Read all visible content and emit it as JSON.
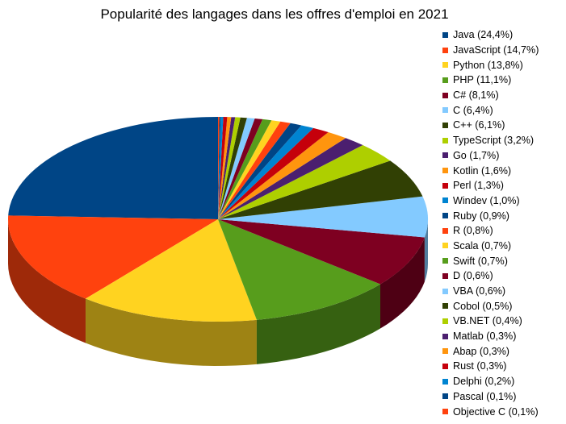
{
  "chart_data": {
    "type": "pie",
    "title": "Popularité des langages dans les offres d'emploi en 2021",
    "legend_position": "right",
    "slices": [
      {
        "label": "Java (24,4%)",
        "name": "Java",
        "value": 24.4,
        "color": "#004586"
      },
      {
        "label": "JavaScript (14,7%)",
        "name": "JavaScript",
        "value": 14.7,
        "color": "#ff420e"
      },
      {
        "label": "Python (13,8%)",
        "name": "Python",
        "value": 13.8,
        "color": "#ffd320"
      },
      {
        "label": "PHP (11,1%)",
        "name": "PHP",
        "value": 11.1,
        "color": "#579d1c"
      },
      {
        "label": "C# (8,1%)",
        "name": "C#",
        "value": 8.1,
        "color": "#7e0021"
      },
      {
        "label": "C (6,4%)",
        "name": "C",
        "value": 6.4,
        "color": "#83caff"
      },
      {
        "label": "C++ (6,1%)",
        "name": "C++",
        "value": 6.1,
        "color": "#314004"
      },
      {
        "label": "TypeScript (3,2%)",
        "name": "TypeScript",
        "value": 3.2,
        "color": "#aecf00"
      },
      {
        "label": "Go (1,7%)",
        "name": "Go",
        "value": 1.7,
        "color": "#4b1f6f"
      },
      {
        "label": "Kotlin (1,6%)",
        "name": "Kotlin",
        "value": 1.6,
        "color": "#ff950e"
      },
      {
        "label": "Perl (1,3%)",
        "name": "Perl",
        "value": 1.3,
        "color": "#c5000b"
      },
      {
        "label": "Windev (1,0%)",
        "name": "Windev",
        "value": 1.0,
        "color": "#0084d1"
      },
      {
        "label": "Ruby (0,9%)",
        "name": "Ruby",
        "value": 0.9,
        "color": "#004586"
      },
      {
        "label": "R (0,8%)",
        "name": "R",
        "value": 0.8,
        "color": "#ff420e"
      },
      {
        "label": "Scala (0,7%)",
        "name": "Scala",
        "value": 0.7,
        "color": "#ffd320"
      },
      {
        "label": "Swift (0,7%)",
        "name": "Swift",
        "value": 0.7,
        "color": "#579d1c"
      },
      {
        "label": "D (0,6%)",
        "name": "D",
        "value": 0.6,
        "color": "#7e0021"
      },
      {
        "label": "VBA (0,6%)",
        "name": "VBA",
        "value": 0.6,
        "color": "#83caff"
      },
      {
        "label": "Cobol (0,5%)",
        "name": "Cobol",
        "value": 0.5,
        "color": "#314004"
      },
      {
        "label": "VB.NET (0,4%)",
        "name": "VB.NET",
        "value": 0.4,
        "color": "#aecf00"
      },
      {
        "label": "Matlab (0,3%)",
        "name": "Matlab",
        "value": 0.3,
        "color": "#4b1f6f"
      },
      {
        "label": "Abap (0,3%)",
        "name": "Abap",
        "value": 0.3,
        "color": "#ff950e"
      },
      {
        "label": "Rust (0,3%)",
        "name": "Rust",
        "value": 0.3,
        "color": "#c5000b"
      },
      {
        "label": "Delphi (0,2%)",
        "name": "Delphi",
        "value": 0.2,
        "color": "#0084d1"
      },
      {
        "label": "Pascal (0,1%)",
        "name": "Pascal",
        "value": 0.1,
        "color": "#004586"
      },
      {
        "label": "Objective C (0,1%)",
        "name": "Objective C",
        "value": 0.1,
        "color": "#ff420e"
      }
    ]
  }
}
